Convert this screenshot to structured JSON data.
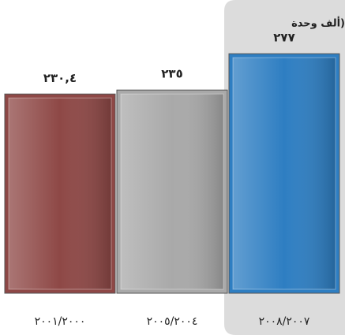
{
  "chart_data": {
    "type": "bar",
    "title": "(ألف وحدة",
    "categories": [
      "٢٠٠١/٢٠٠٠",
      "٢٠٠٥/٢٠٠٤",
      "٢٠٠٨/٢٠٠٧"
    ],
    "values": [
      230.4,
      235,
      277
    ],
    "value_labels": [
      "٢٣٠,٤",
      "٢٣٥",
      "٢٧٧"
    ],
    "colors": [
      "#8e4846",
      "#a9a9a9",
      "#2e7ec2"
    ]
  }
}
